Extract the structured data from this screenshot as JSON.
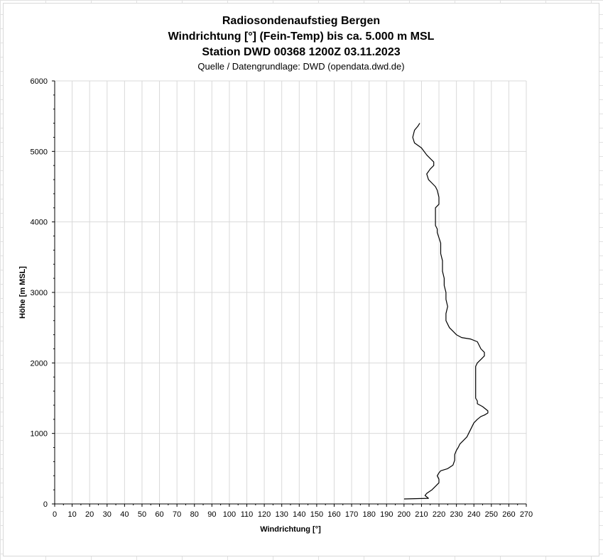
{
  "chart_data": {
    "type": "line",
    "title": "Radiosondenaufstieg Bergen",
    "title_line2": "Windrichtung [°] (Fein-Temp) bis ca. 5.000 m MSL",
    "title_line3": "Station DWD 00368 1200Z 03.11.2023",
    "subtitle": "Quelle / Datengrundlage: DWD (opendata.dwd.de)",
    "xlabel": "Windrichtung [°]",
    "ylabel": "Höhe [m MSL]",
    "xlim": [
      0,
      270
    ],
    "ylim": [
      0,
      6000
    ],
    "x_ticks": [
      0,
      10,
      20,
      30,
      40,
      50,
      60,
      70,
      80,
      90,
      100,
      110,
      120,
      130,
      140,
      150,
      160,
      170,
      180,
      190,
      200,
      210,
      220,
      230,
      240,
      250,
      260,
      270
    ],
    "y_ticks": [
      0,
      1000,
      2000,
      3000,
      4000,
      5000,
      6000
    ],
    "grid": true,
    "line_color": "#000000",
    "series": [
      {
        "x": [
          200,
          214,
          212,
          213,
          216,
          218,
          220,
          220,
          219,
          220,
          221,
          225,
          228,
          229,
          229,
          230,
          231,
          232,
          234,
          236,
          237,
          238,
          239,
          240,
          242,
          244,
          246,
          248,
          248,
          245,
          242,
          242,
          241,
          241,
          241,
          241,
          241,
          241,
          242,
          244,
          246,
          246,
          244,
          242,
          238,
          233,
          230,
          228,
          226,
          225,
          224,
          224,
          225,
          224,
          224,
          223,
          223,
          222,
          222,
          221,
          221,
          219,
          219,
          218,
          218,
          220,
          220,
          219,
          218,
          216,
          214,
          213,
          215,
          217,
          217,
          215,
          213,
          210,
          206,
          205,
          206,
          208,
          209
        ],
        "y": [
          70,
          80,
          120,
          150,
          200,
          250,
          300,
          350,
          400,
          440,
          470,
          500,
          550,
          620,
          700,
          760,
          800,
          850,
          900,
          950,
          1000,
          1050,
          1100,
          1150,
          1200,
          1240,
          1260,
          1290,
          1320,
          1380,
          1420,
          1460,
          1500,
          1550,
          1650,
          1750,
          1850,
          1950,
          2000,
          2050,
          2100,
          2150,
          2200,
          2300,
          2340,
          2360,
          2400,
          2450,
          2500,
          2550,
          2600,
          2700,
          2800,
          2900,
          3000,
          3100,
          3200,
          3300,
          3450,
          3550,
          3700,
          3850,
          3900,
          3950,
          4200,
          4250,
          4350,
          4450,
          4500,
          4550,
          4600,
          4680,
          4750,
          4800,
          4850,
          4900,
          4950,
          5050,
          5120,
          5200,
          5300,
          5360,
          5400
        ]
      }
    ]
  }
}
